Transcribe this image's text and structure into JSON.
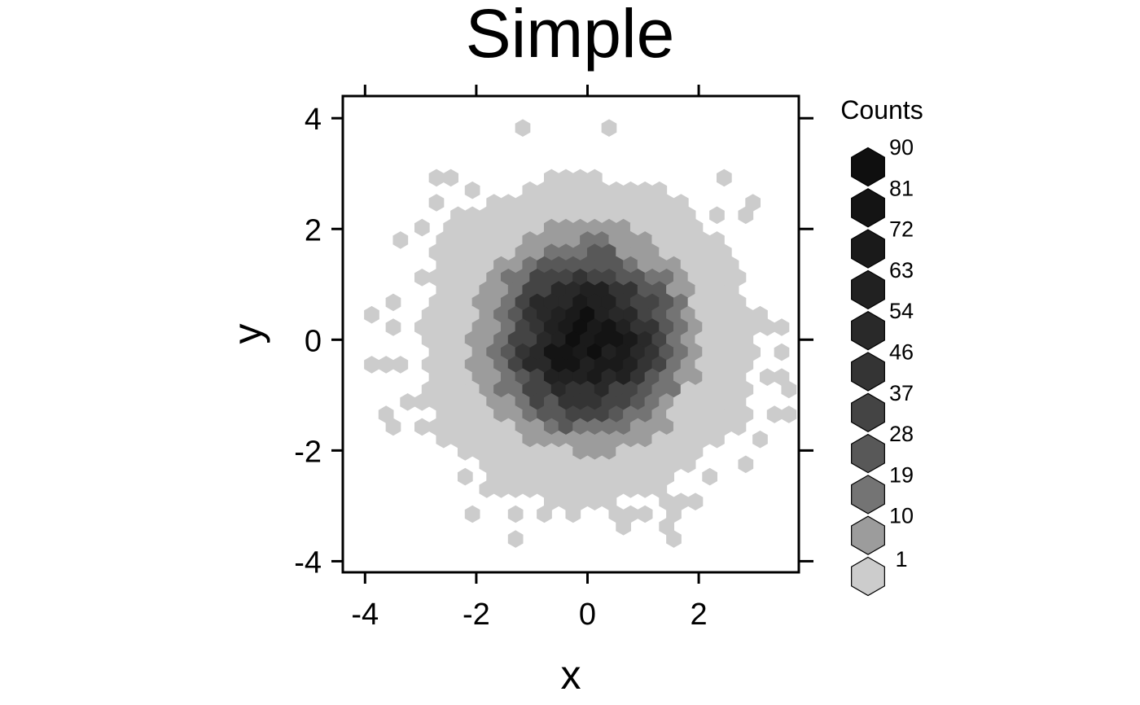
{
  "chart_data": {
    "type": "heatmap",
    "subtype": "hexbin",
    "title": "Simple",
    "xlabel": "x",
    "ylabel": "y",
    "xlim": [
      -4.4,
      3.8
    ],
    "ylim": [
      -4.2,
      4.4
    ],
    "x_ticks": [
      -4,
      -2,
      0,
      2
    ],
    "y_ticks": [
      -4,
      -2,
      0,
      2,
      4
    ],
    "distribution": {
      "kind": "bivariate normal",
      "mean": [
        0,
        0
      ],
      "sd": [
        1,
        1
      ],
      "max_count": 90
    },
    "colorscale": {
      "title": "Counts",
      "breaks": [
        1,
        10,
        19,
        28,
        37,
        46,
        54,
        63,
        72,
        81,
        90
      ],
      "colors": [
        "#cccccc",
        "#9c9c9c",
        "#747474",
        "#585858",
        "#444444",
        "#343434",
        "#292929",
        "#212121",
        "#1a1a1a",
        "#141414",
        "#0f0f0f"
      ]
    },
    "grid": false,
    "legend_position": "right"
  }
}
